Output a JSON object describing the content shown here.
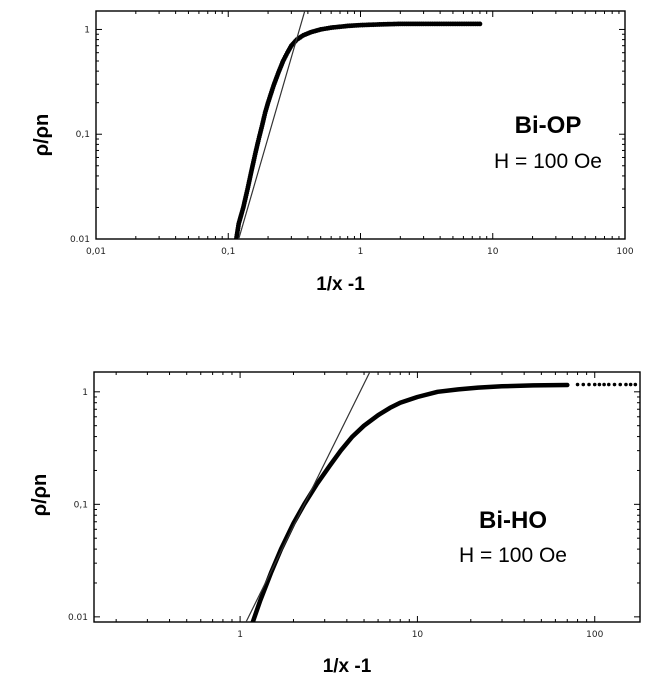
{
  "chart_data": [
    {
      "type": "line",
      "title": "",
      "xlabel": "1/x -1",
      "ylabel": "ρ/ρn",
      "xscale": "log",
      "yscale": "log",
      "xlim": [
        0.01,
        100
      ],
      "ylim": [
        0.01,
        1.5
      ],
      "xtick_labels": [
        "0.01",
        "0.1",
        "1",
        "10",
        "100"
      ],
      "xticks": [
        0.01,
        0.1,
        1,
        10,
        100
      ],
      "ytick_labels": [
        "0.01",
        "0.1",
        "1"
      ],
      "yticks": [
        0.01,
        0.1,
        1
      ],
      "annotation": {
        "line1": "Bi-OP",
        "line2": "H = 100 Oe"
      },
      "series": [
        {
          "style": "markers",
          "x": [
            0.115,
            0.12,
            0.13,
            0.14,
            0.15,
            0.16,
            0.17,
            0.18,
            0.19,
            0.2,
            0.22,
            0.24,
            0.26,
            0.28,
            0.3,
            0.33,
            0.37,
            0.42,
            0.5,
            0.6,
            0.8,
            1,
            1.5,
            2,
            3,
            5,
            8
          ],
          "y": [
            0.01,
            0.014,
            0.02,
            0.03,
            0.045,
            0.065,
            0.09,
            0.12,
            0.16,
            0.2,
            0.29,
            0.39,
            0.5,
            0.6,
            0.7,
            0.8,
            0.88,
            0.94,
            1.0,
            1.04,
            1.08,
            1.1,
            1.12,
            1.13,
            1.13,
            1.13,
            1.13
          ]
        },
        {
          "style": "fit-line",
          "x": [
            0.12,
            0.43
          ],
          "y": [
            0.01,
            2.6
          ]
        }
      ]
    },
    {
      "type": "line",
      "title": "",
      "xlabel": "1/x -1",
      "ylabel": "ρ/ρn",
      "xscale": "log",
      "yscale": "log",
      "xlim": [
        0.15,
        180
      ],
      "ylim": [
        0.009,
        1.5
      ],
      "xtick_labels": [
        "1",
        "10",
        "100"
      ],
      "xticks": [
        1,
        10,
        100
      ],
      "ytick_labels": [
        "0.01",
        "0.1",
        "1"
      ],
      "yticks": [
        0.01,
        0.1,
        1
      ],
      "annotation": {
        "line1": "Bi-HO",
        "line2": "H = 100 Oe"
      },
      "series": [
        {
          "style": "solid",
          "x": [
            1.18,
            1.3,
            1.5,
            1.7,
            2.0,
            2.3,
            2.7,
            3.2,
            3.7,
            4.3,
            5,
            6,
            7,
            8,
            10,
            13,
            17,
            22,
            30,
            45,
            70
          ],
          "y": [
            0.009,
            0.014,
            0.025,
            0.04,
            0.068,
            0.1,
            0.15,
            0.22,
            0.3,
            0.4,
            0.5,
            0.62,
            0.72,
            0.8,
            0.9,
            1.0,
            1.05,
            1.09,
            1.12,
            1.14,
            1.15
          ]
        },
        {
          "style": "dotted",
          "x": [
            80,
            100,
            120,
            150,
            180
          ],
          "y": [
            1.16,
            1.16,
            1.16,
            1.16,
            1.16
          ]
        },
        {
          "style": "fit-line",
          "x": [
            1.08,
            5.9
          ],
          "y": [
            0.009,
            2.0
          ]
        }
      ]
    }
  ]
}
